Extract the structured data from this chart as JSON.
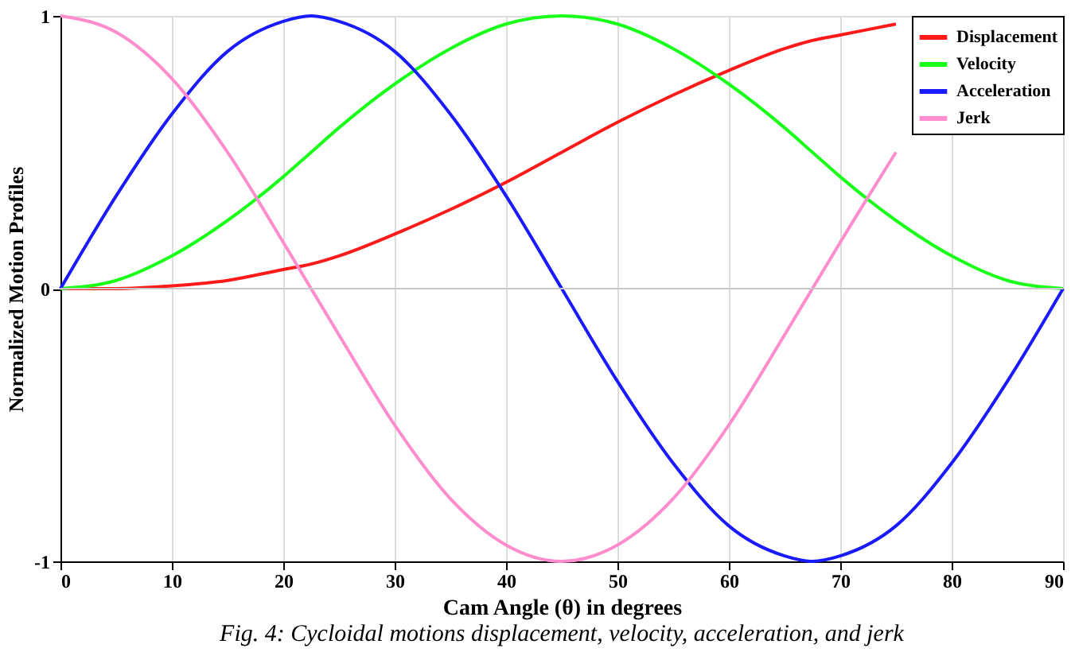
{
  "chart_data": {
    "type": "line",
    "xlabel": "Cam Angle (θ) in degrees",
    "ylabel": "Normalized Motion Profiles",
    "x": [
      0,
      5,
      10,
      15,
      20,
      22.5,
      25,
      30,
      35,
      40,
      45,
      50,
      55,
      60,
      65,
      67.5,
      70,
      75,
      80,
      85,
      90
    ],
    "series": [
      {
        "name": "Displacement",
        "color": "#ff1a1a",
        "values": [
          0,
          0,
          0.01,
          0.03,
          0.07,
          0.09,
          0.12,
          0.2,
          0.29,
          0.39,
          0.5,
          0.61,
          0.71,
          0.8,
          0.88,
          0.91,
          0.93,
          0.97,
          null,
          null,
          null
        ]
      },
      {
        "name": "Velocity",
        "color": "#1aff1a",
        "values": [
          0,
          0.03,
          0.12,
          0.25,
          0.41,
          0.5,
          0.59,
          0.75,
          0.88,
          0.97,
          1,
          0.97,
          0.88,
          0.75,
          0.59,
          0.5,
          0.41,
          0.25,
          0.12,
          0.03,
          0
        ]
      },
      {
        "name": "Acceleration",
        "color": "#1a1aff",
        "values": [
          0,
          0.34,
          0.64,
          0.87,
          0.98,
          1,
          0.98,
          0.87,
          0.64,
          0.34,
          0,
          -0.34,
          -0.64,
          -0.87,
          -0.98,
          -1,
          -0.98,
          -0.87,
          -0.64,
          -0.34,
          0
        ]
      },
      {
        "name": "Jerk",
        "color": "#ff8ccc",
        "values": [
          1,
          0.94,
          0.77,
          0.5,
          0.17,
          0,
          -0.17,
          -0.5,
          -0.77,
          -0.94,
          -1,
          -0.94,
          -0.77,
          -0.5,
          -0.17,
          0,
          0.17,
          0.5,
          null,
          null,
          null
        ]
      }
    ],
    "xlim": [
      0,
      90
    ],
    "xticks": [
      0,
      10,
      20,
      30,
      40,
      50,
      60,
      70,
      80,
      90
    ],
    "ylim": [
      -1,
      1
    ],
    "yticks": [
      {
        "value": -1,
        "label": "-1"
      },
      {
        "value": 0,
        "label": "0"
      },
      {
        "value": 1,
        "label": "1"
      }
    ],
    "grid": "x",
    "legend": "top right",
    "marker": "none",
    "line_style": "solid",
    "ref_lines": [
      {
        "axis": "y",
        "value": 0,
        "color": "#c8c8c8"
      }
    ],
    "annotations": [
      "Fig. 4: Cycloidal motions displacement, velocity, acceleration, and jerk"
    ]
  }
}
